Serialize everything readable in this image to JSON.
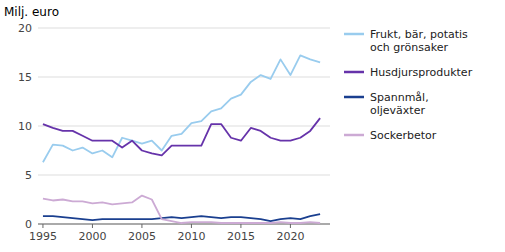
{
  "chart_data": {
    "type": "line",
    "y_label": "Milj. euro",
    "x": [
      1995,
      1996,
      1997,
      1998,
      1999,
      2000,
      2001,
      2002,
      2003,
      2004,
      2005,
      2006,
      2007,
      2008,
      2009,
      2010,
      2011,
      2012,
      2013,
      2014,
      2015,
      2016,
      2017,
      2018,
      2019,
      2020,
      2021,
      2022,
      2023
    ],
    "series": [
      {
        "name": "Frukt, bär, potatis\noch grönsaker",
        "color": "#99ccee",
        "values": [
          6.3,
          8.1,
          8.0,
          7.5,
          7.8,
          7.2,
          7.5,
          6.8,
          8.8,
          8.5,
          8.2,
          8.5,
          7.5,
          9.0,
          9.2,
          10.3,
          10.5,
          11.5,
          11.8,
          12.8,
          13.2,
          14.5,
          15.2,
          14.8,
          16.8,
          15.2,
          17.2,
          16.8,
          16.5
        ]
      },
      {
        "name": "Husdjursprodukter",
        "color": "#6633aa",
        "values": [
          10.2,
          9.8,
          9.5,
          9.5,
          9.0,
          8.5,
          8.5,
          8.5,
          7.8,
          8.5,
          7.5,
          7.2,
          7.0,
          8.0,
          8.0,
          8.0,
          8.0,
          10.2,
          10.2,
          8.8,
          8.5,
          9.8,
          9.5,
          8.8,
          8.5,
          8.5,
          8.8,
          9.5,
          10.8
        ]
      },
      {
        "name": "Spannmål,\noljeväxter",
        "color": "#1a3f8f",
        "values": [
          0.8,
          0.8,
          0.7,
          0.6,
          0.5,
          0.4,
          0.5,
          0.5,
          0.5,
          0.5,
          0.5,
          0.5,
          0.6,
          0.7,
          0.6,
          0.7,
          0.8,
          0.7,
          0.6,
          0.7,
          0.7,
          0.6,
          0.5,
          0.3,
          0.5,
          0.6,
          0.5,
          0.8,
          1.0
        ]
      },
      {
        "name": "Sockerbetor",
        "color": "#ccaad4",
        "values": [
          2.6,
          2.4,
          2.5,
          2.3,
          2.3,
          2.1,
          2.2,
          2.0,
          2.1,
          2.2,
          2.9,
          2.5,
          0.5,
          0.3,
          0.1,
          0.2,
          0.2,
          0.2,
          0.1,
          0.1,
          0.1,
          0.1,
          0.1,
          0.1,
          0.2,
          0.1,
          0.1,
          0.2,
          0.1
        ]
      }
    ],
    "xlim": [
      1994.5,
      2024
    ],
    "xticks": [
      1995,
      2000,
      2005,
      2010,
      2015,
      2020
    ],
    "ylim": [
      0,
      20
    ],
    "yticks": [
      0,
      5,
      10,
      15,
      20
    ],
    "grid": true,
    "legend": "right"
  }
}
